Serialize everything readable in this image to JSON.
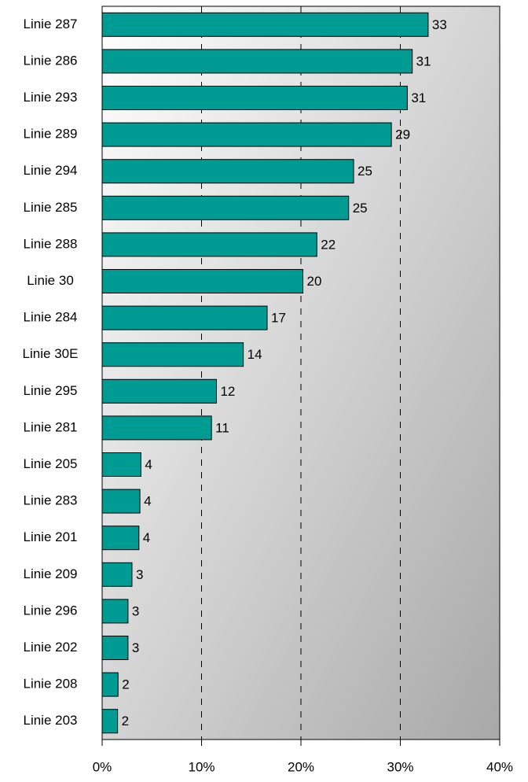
{
  "chart_data": {
    "type": "barh",
    "categories": [
      "Linie 287",
      "Linie 286",
      "Linie 293",
      "Linie 289",
      "Linie 294",
      "Linie 285",
      "Linie 288",
      "Linie 30",
      "Linie 284",
      "Linie 30E",
      "Linie 295",
      "Linie 281",
      "Linie 205",
      "Linie 283",
      "Linie 201",
      "Linie 209",
      "Linie 296",
      "Linie 202",
      "Linie 208",
      "Linie 203"
    ],
    "values": [
      32.8,
      31.2,
      30.7,
      29.1,
      25.3,
      24.8,
      21.6,
      20.2,
      16.6,
      14.2,
      11.5,
      11.0,
      3.9,
      3.8,
      3.7,
      3.0,
      2.6,
      2.6,
      1.6,
      1.55
    ],
    "value_labels": [
      "33",
      "31",
      "31",
      "29",
      "25",
      "25",
      "22",
      "20",
      "17",
      "14",
      "12",
      "11",
      "4",
      "4",
      "4",
      "3",
      "3",
      "3",
      "2",
      "2"
    ],
    "color": "#009c94",
    "xlim": [
      0,
      40
    ],
    "xticks": [
      {
        "value": 0,
        "label": "0%"
      },
      {
        "value": 10,
        "label": "10%"
      },
      {
        "value": 20,
        "label": "20%"
      },
      {
        "value": 30,
        "label": "30%"
      },
      {
        "value": 40,
        "label": "40%"
      }
    ],
    "grid": true
  }
}
